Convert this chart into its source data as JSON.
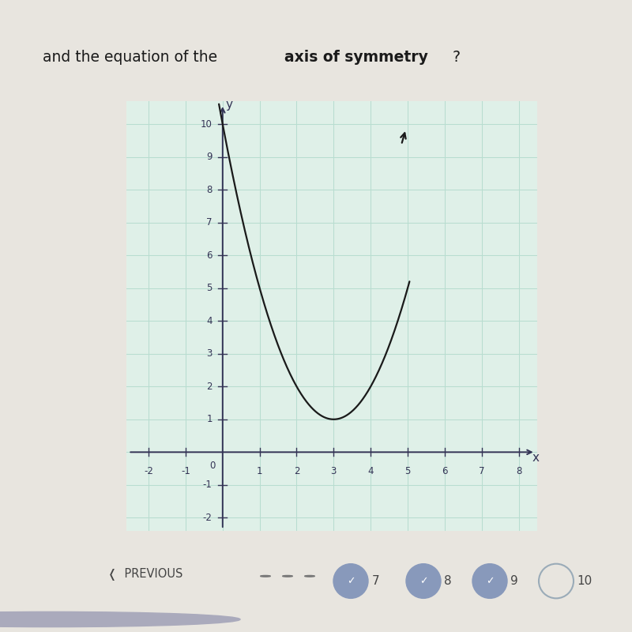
{
  "vertex_x": 3,
  "vertex_y": 1,
  "a": 1,
  "x_min": -2,
  "x_max": 8,
  "y_min": -2,
  "y_max": 10,
  "x_ticks": [
    -2,
    -1,
    1,
    2,
    3,
    4,
    5,
    6,
    7,
    8
  ],
  "y_ticks": [
    -2,
    -1,
    1,
    2,
    3,
    4,
    5,
    6,
    7,
    8,
    9,
    10
  ],
  "curve_color": "#1a1a1a",
  "grid_color": "#b8ddd0",
  "axis_color": "#333355",
  "background_color": "#e8e5df",
  "plot_bg_color": "#dff0e8",
  "curve_x_start": -0.1,
  "curve_x_end": 5.05,
  "curve_linewidth": 1.6,
  "nav_items": [
    "7",
    "8",
    "9",
    "10"
  ],
  "nav_checked": [
    true,
    true,
    true,
    false
  ],
  "nav_circle_color": "#8899bb",
  "nav_circle_outline": "#9aabb8"
}
